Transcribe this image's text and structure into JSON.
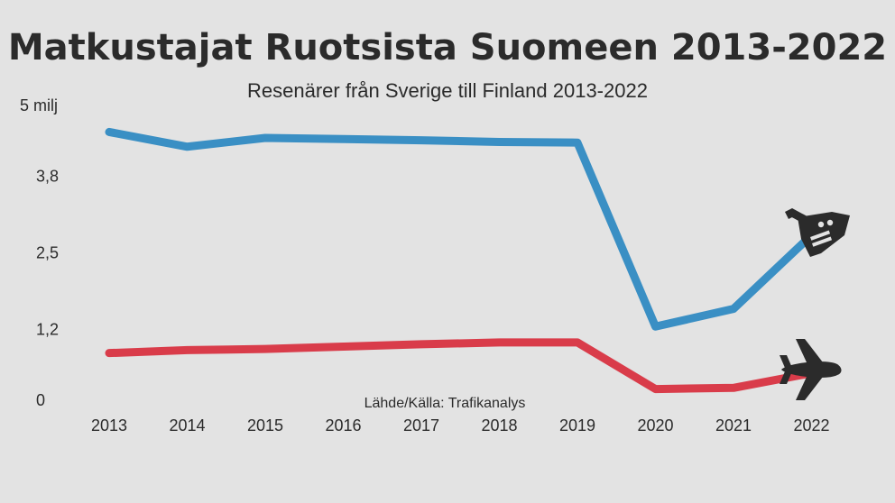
{
  "chart_data": {
    "type": "line",
    "title": "Matkustajat Ruotsista Suomeen 2013-2022",
    "subtitle": "Resenärer från Sverige till Finland 2013-2022",
    "source": "Lähde/Källa: Trafikanalys",
    "x": [
      "2013",
      "2014",
      "2015",
      "2016",
      "2017",
      "2018",
      "2019",
      "2020",
      "2021",
      "2022"
    ],
    "y_ticks": [
      "0",
      "1,2",
      "2,5",
      "3,8",
      "5 milj"
    ],
    "y_tick_values": [
      0,
      1.2,
      2.5,
      3.8,
      5
    ],
    "ylim": [
      0,
      5
    ],
    "grid": false,
    "series": [
      {
        "icon": "ship-icon",
        "color": "#3a8fc4",
        "values": [
          4.55,
          4.3,
          4.45,
          4.43,
          4.41,
          4.38,
          4.37,
          1.25,
          1.55,
          2.8
        ]
      },
      {
        "icon": "airplane-icon",
        "color": "#d93c4a",
        "values": [
          0.8,
          0.85,
          0.87,
          0.91,
          0.95,
          0.98,
          0.98,
          0.19,
          0.21,
          0.46
        ]
      }
    ]
  }
}
